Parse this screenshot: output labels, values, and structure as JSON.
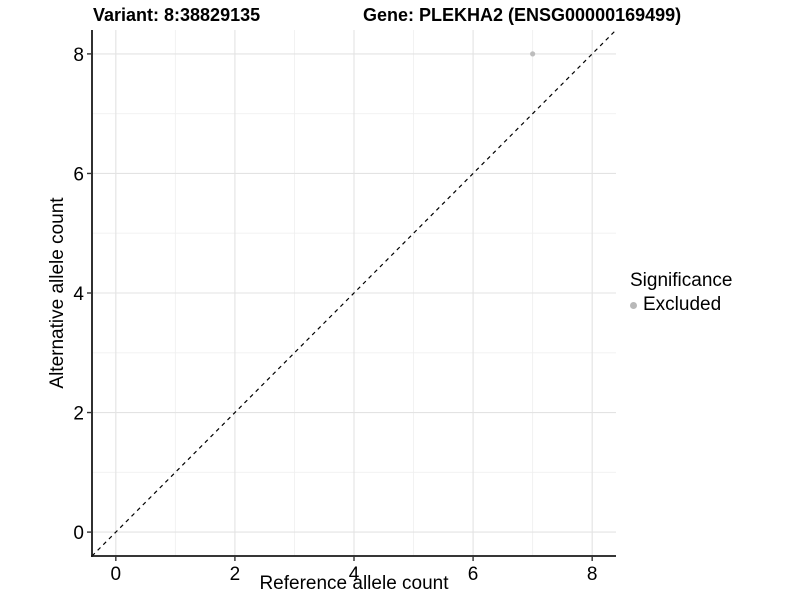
{
  "titles": {
    "variant": "Variant: 8:38829135",
    "gene": "Gene: PLEKHA2 (ENSG00000169499)"
  },
  "chart_data": {
    "type": "scatter",
    "xlabel": "Reference allele count",
    "ylabel": "Alternative allele count",
    "xlim": [
      -0.4,
      8.4
    ],
    "ylim": [
      -0.4,
      8.4
    ],
    "x_ticks": [
      0,
      2,
      4,
      6,
      8
    ],
    "y_ticks": [
      0,
      2,
      4,
      6,
      8
    ],
    "x_minor_ticks": [
      1,
      3,
      5,
      7
    ],
    "y_minor_ticks": [
      1,
      3,
      5,
      7
    ],
    "grid": true,
    "points": [
      {
        "x": 7,
        "y": 8,
        "series": "Excluded"
      }
    ],
    "reference_line": {
      "kind": "identity",
      "slope": 1,
      "intercept": 0,
      "style": "dashed"
    },
    "legend": {
      "title": "Significance",
      "position": "right",
      "items": [
        {
          "label": "Excluded",
          "color": "#b8b8b8"
        }
      ]
    },
    "colors": {
      "point": "#bdbdbd",
      "grid_major": "#e3e3e3",
      "grid_minor": "#f0f0f0",
      "axis": "#1a1a1a",
      "tick": "#333333",
      "reference_line": "#000000"
    }
  }
}
